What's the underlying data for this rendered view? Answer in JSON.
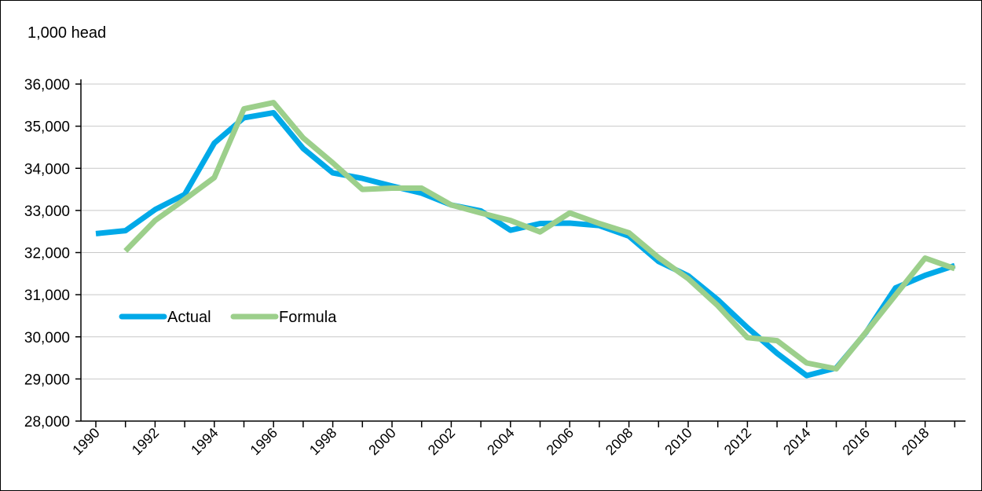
{
  "chart_data": {
    "type": "line",
    "unit_label": "1,000 head",
    "x": [
      1990,
      1991,
      1992,
      1993,
      1994,
      1995,
      1996,
      1997,
      1998,
      1999,
      2000,
      2001,
      2002,
      2003,
      2004,
      2005,
      2006,
      2007,
      2008,
      2009,
      2010,
      2011,
      2012,
      2013,
      2014,
      2015,
      2016,
      2017,
      2018,
      2019
    ],
    "x_tick_labels": [
      "1990",
      "1992",
      "1994",
      "1996",
      "1998",
      "2000",
      "2002",
      "2004",
      "2006",
      "2008",
      "2010",
      "2012",
      "2014",
      "2016",
      "2018"
    ],
    "ylim": [
      28000,
      36000
    ],
    "y_tick_labels": [
      "28,000",
      "29,000",
      "30,000",
      "31,000",
      "32,000",
      "33,000",
      "34,000",
      "35,000",
      "36,000"
    ],
    "grid": true,
    "legend_placement": "middle-left",
    "series": [
      {
        "name": "Actual",
        "color": "#00a9e8",
        "values": [
          32450,
          32520,
          33020,
          33380,
          34600,
          35200,
          35320,
          34470,
          33890,
          33760,
          33580,
          33410,
          33130,
          32990,
          32530,
          32690,
          32700,
          32640,
          32390,
          31790,
          31450,
          30880,
          30220,
          29610,
          29080,
          29260,
          30100,
          31160,
          31460,
          31690
        ]
      },
      {
        "name": "Formula",
        "color": "#9ccf8b",
        "values": [
          null,
          32040,
          32760,
          33260,
          33780,
          35410,
          35560,
          34720,
          34130,
          33500,
          33530,
          33530,
          33130,
          32940,
          32760,
          32490,
          32940,
          32690,
          32470,
          31880,
          31380,
          30740,
          29980,
          29910,
          29380,
          29240,
          30110,
          30990,
          31870,
          31620
        ]
      }
    ]
  }
}
